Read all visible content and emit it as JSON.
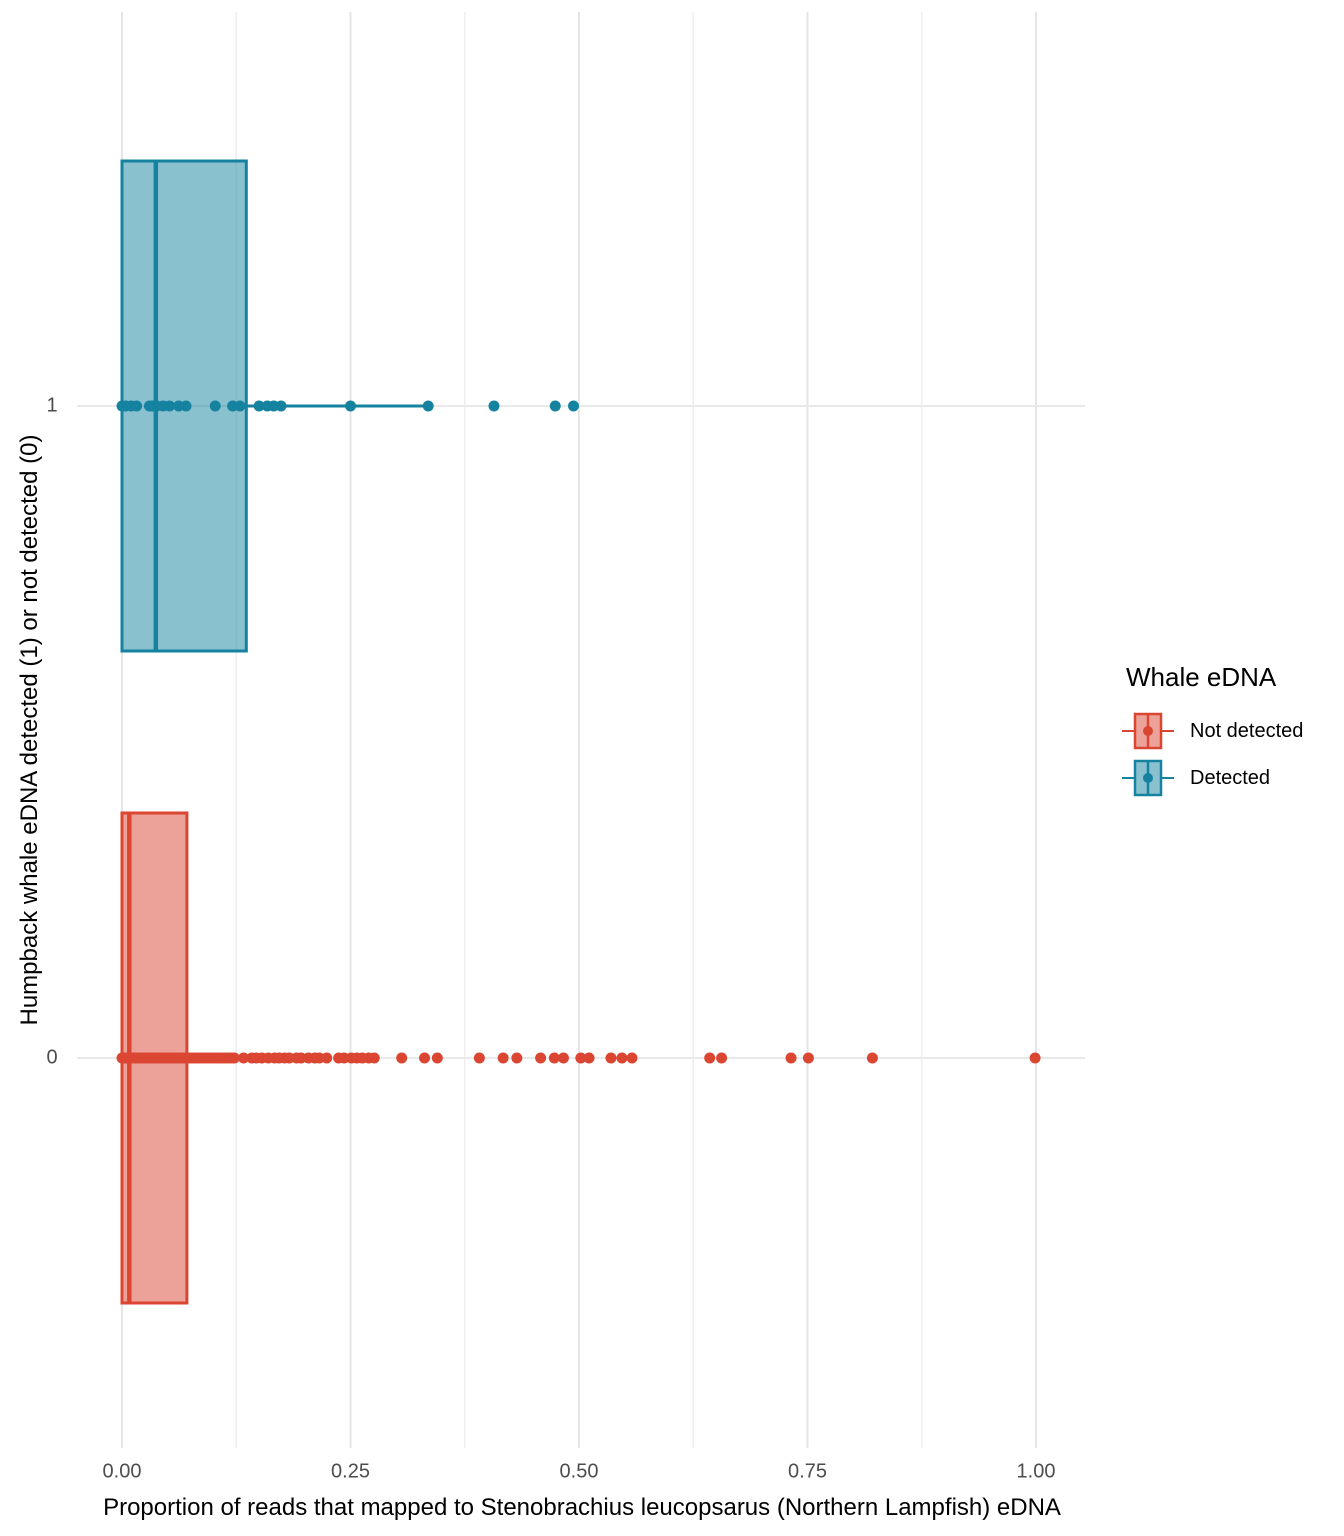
{
  "legend": {
    "title": "Whale eDNA",
    "items": [
      {
        "label": "Not detected",
        "color": "#DB4633",
        "fill_alpha": 0.5
      },
      {
        "label": "Detected",
        "color": "#1583A0",
        "fill_alpha": 0.5
      }
    ]
  },
  "chart_data": {
    "type": "boxplot",
    "orientation": "horizontal",
    "title": "",
    "xlabel": "Proportion of reads that mapped to Stenobrachius leucopsarus (Northern Lampfish) eDNA",
    "ylabel": "Humpback whale eDNA detected (1) or not detected (0)",
    "xlim": [
      -0.05,
      1.05
    ],
    "x_ticks": [
      {
        "label": "0.00",
        "value": 0.0
      },
      {
        "label": "0.25",
        "value": 0.25
      },
      {
        "label": "0.50",
        "value": 0.5
      },
      {
        "label": "0.75",
        "value": 0.75
      },
      {
        "label": "1.00",
        "value": 1.0
      }
    ],
    "x_minor_ticks": [
      0.125,
      0.375,
      0.625,
      0.875
    ],
    "y_rows": [
      {
        "category": "1"
      },
      {
        "category": "0"
      }
    ],
    "grid": {
      "major_color": "#E5E5E5",
      "minor_color": "#EFEFEF",
      "horizontal_color": "#E9E9E9",
      "background": "#FFFFFF",
      "legend_position": "right"
    },
    "series": [
      {
        "name": "Detected",
        "row": "1",
        "color": "#1583A0",
        "fill_alpha": 0.5,
        "box": {
          "q1": 0.0,
          "median": 0.037,
          "q3": 0.136,
          "whisker_low": 0.0,
          "whisker_high": 0.335
        },
        "points": [
          0,
          0.004,
          0.01,
          0.016,
          0.03,
          0.033,
          0.035,
          0.038,
          0.045,
          0.052,
          0.062,
          0.07,
          0.102,
          0.121,
          0.129,
          0.15,
          0.159,
          0.166,
          0.174,
          0.25,
          0.335,
          0.407,
          0.474,
          0.494
        ]
      },
      {
        "name": "Not detected",
        "row": "0",
        "color": "#DB4633",
        "fill_alpha": 0.5,
        "box": {
          "q1": 0.0,
          "median": 0.008,
          "q3": 0.071,
          "whisker_low": 0.0,
          "whisker_high": 0.165
        },
        "points": [
          0,
          0.002,
          0.004,
          0.006,
          0.008,
          0.01,
          0.012,
          0.015,
          0.018,
          0.021,
          0.024,
          0.027,
          0.03,
          0.033,
          0.036,
          0.039,
          0.042,
          0.045,
          0.048,
          0.051,
          0.054,
          0.057,
          0.06,
          0.063,
          0.066,
          0.069,
          0.072,
          0.075,
          0.078,
          0.081,
          0.084,
          0.087,
          0.09,
          0.093,
          0.096,
          0.099,
          0.102,
          0.105,
          0.108,
          0.111,
          0.114,
          0.117,
          0.12,
          0.123,
          0.133,
          0.142,
          0.147,
          0.153,
          0.16,
          0.167,
          0.172,
          0.178,
          0.183,
          0.191,
          0.196,
          0.204,
          0.211,
          0.216,
          0.224,
          0.237,
          0.243,
          0.251,
          0.257,
          0.263,
          0.27,
          0.276,
          0.306,
          0.331,
          0.345,
          0.391,
          0.417,
          0.432,
          0.458,
          0.473,
          0.483,
          0.502,
          0.511,
          0.535,
          0.547,
          0.558,
          0.643,
          0.656,
          0.732,
          0.751,
          0.821,
          0.999
        ]
      }
    ]
  }
}
